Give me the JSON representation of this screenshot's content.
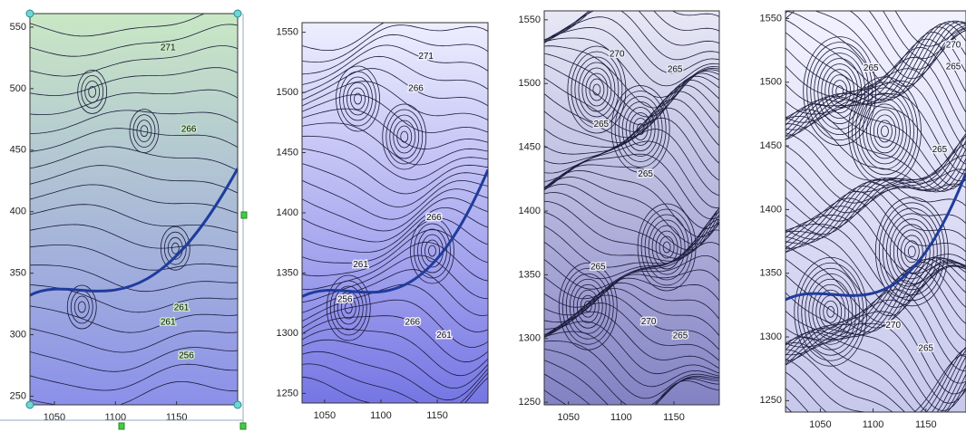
{
  "chart_data": [
    {
      "type": "contour",
      "xlim": [
        1030,
        1200
      ],
      "ylim": [
        243,
        561
      ],
      "xticks": [
        1050,
        1100,
        1150
      ],
      "yticks": [
        250,
        300,
        350,
        400,
        450,
        500,
        550
      ],
      "colors": [
        "#c9e8c4",
        "#8c90ea"
      ],
      "levels": [
        {
          "value": 271,
          "x": 1143,
          "y": 533
        },
        {
          "value": 266,
          "x": 1160,
          "y": 467
        },
        {
          "value": 261,
          "x": 1154,
          "y": 322
        },
        {
          "value": 261,
          "x": 1143,
          "y": 310
        },
        {
          "value": 256,
          "x": 1158,
          "y": 283
        }
      ]
    },
    {
      "type": "contour",
      "xlim": [
        1030,
        1195
      ],
      "ylim": [
        1242,
        1558
      ],
      "xticks": [
        1050,
        1100,
        1150
      ],
      "yticks": [
        1250,
        1300,
        1350,
        1400,
        1450,
        1500,
        1550
      ],
      "colors": [
        "#eeeeff",
        "#7676e4"
      ],
      "levels": [
        {
          "value": 271,
          "x": 1140,
          "y": 1530
        },
        {
          "value": 266,
          "x": 1131,
          "y": 1503
        },
        {
          "value": 266,
          "x": 1147,
          "y": 1396
        },
        {
          "value": 261,
          "x": 1082,
          "y": 1357
        },
        {
          "value": 256,
          "x": 1068,
          "y": 1328
        },
        {
          "value": 266,
          "x": 1128,
          "y": 1309
        },
        {
          "value": 261,
          "x": 1156,
          "y": 1298
        }
      ]
    },
    {
      "type": "contour",
      "xlim": [
        1027,
        1193
      ],
      "ylim": [
        1248,
        1557
      ],
      "xticks": [
        1050,
        1100,
        1150
      ],
      "yticks": [
        1250,
        1300,
        1350,
        1400,
        1450,
        1500,
        1550
      ],
      "colors": [
        "#e8e8f6",
        "#8282c4"
      ],
      "levels": [
        {
          "value": 270,
          "x": 1096,
          "y": 1523
        },
        {
          "value": 265,
          "x": 1151,
          "y": 1511
        },
        {
          "value": 265,
          "x": 1081,
          "y": 1468
        },
        {
          "value": 265,
          "x": 1123,
          "y": 1429
        },
        {
          "value": 265,
          "x": 1078,
          "y": 1356
        },
        {
          "value": 270,
          "x": 1126,
          "y": 1313
        },
        {
          "value": 265,
          "x": 1156,
          "y": 1302
        }
      ]
    },
    {
      "type": "contour",
      "xlim": [
        1017,
        1188
      ],
      "ylim": [
        1241,
        1556
      ],
      "xticks": [
        1050,
        1100,
        1150
      ],
      "yticks": [
        1250,
        1300,
        1350,
        1400,
        1450,
        1500,
        1550
      ],
      "colors": [
        "#f2f2ff",
        "#c8c8ec"
      ],
      "levels": [
        {
          "value": 270,
          "x": 1176,
          "y": 1529
        },
        {
          "value": 265,
          "x": 1176,
          "y": 1512
        },
        {
          "value": 265,
          "x": 1098,
          "y": 1511
        },
        {
          "value": 265,
          "x": 1163,
          "y": 1447
        },
        {
          "value": 270,
          "x": 1119,
          "y": 1309
        },
        {
          "value": 265,
          "x": 1150,
          "y": 1291
        }
      ]
    }
  ]
}
